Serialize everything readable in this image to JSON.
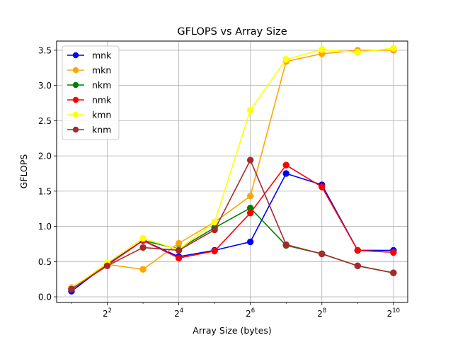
{
  "chart_data": {
    "type": "line",
    "title": "GFLOPS vs Array Size",
    "xlabel": "Array Size (bytes)",
    "ylabel": "GFLOPS",
    "x_scale": "log2",
    "x": [
      2,
      4,
      8,
      16,
      32,
      64,
      128,
      256,
      512,
      1024
    ],
    "xticks": [
      {
        "value": 4,
        "base": "2",
        "exp": "2"
      },
      {
        "value": 16,
        "base": "2",
        "exp": "4"
      },
      {
        "value": 64,
        "base": "2",
        "exp": "6"
      },
      {
        "value": 256,
        "base": "2",
        "exp": "8"
      },
      {
        "value": 1024,
        "base": "2",
        "exp": "10"
      }
    ],
    "xlim": [
      1.5,
      1350
    ],
    "ylim": [
      -0.08,
      3.63
    ],
    "yticks": [
      "0.0",
      "0.5",
      "1.0",
      "1.5",
      "2.0",
      "2.5",
      "3.0",
      "3.5"
    ],
    "grid": true,
    "legend_position": "top-left",
    "series": [
      {
        "name": "mnk",
        "color": "#0000ff",
        "values": [
          0.08,
          0.46,
          0.8,
          0.57,
          0.66,
          0.78,
          1.75,
          1.59,
          0.66,
          0.66
        ]
      },
      {
        "name": "mkn",
        "color": "#ffa500",
        "values": [
          0.13,
          0.46,
          0.39,
          0.76,
          1.06,
          1.43,
          3.34,
          3.45,
          3.5,
          3.5
        ]
      },
      {
        "name": "nkm",
        "color": "#008000",
        "values": [
          0.11,
          0.45,
          0.8,
          0.68,
          0.98,
          1.26,
          0.73,
          0.61,
          0.44,
          0.34
        ]
      },
      {
        "name": "nmk",
        "color": "#ff0000",
        "values": [
          0.11,
          0.45,
          0.8,
          0.55,
          0.65,
          1.19,
          1.87,
          1.56,
          0.66,
          0.63
        ]
      },
      {
        "name": "kmn",
        "color": "#ffff00",
        "values": [
          0.12,
          0.48,
          0.83,
          0.67,
          1.06,
          2.65,
          3.37,
          3.51,
          3.47,
          3.53
        ]
      },
      {
        "name": "knm",
        "color": "#a52a2a",
        "values": [
          0.11,
          0.44,
          0.7,
          0.66,
          0.95,
          1.94,
          0.74,
          0.61,
          0.44,
          0.34
        ]
      }
    ]
  }
}
